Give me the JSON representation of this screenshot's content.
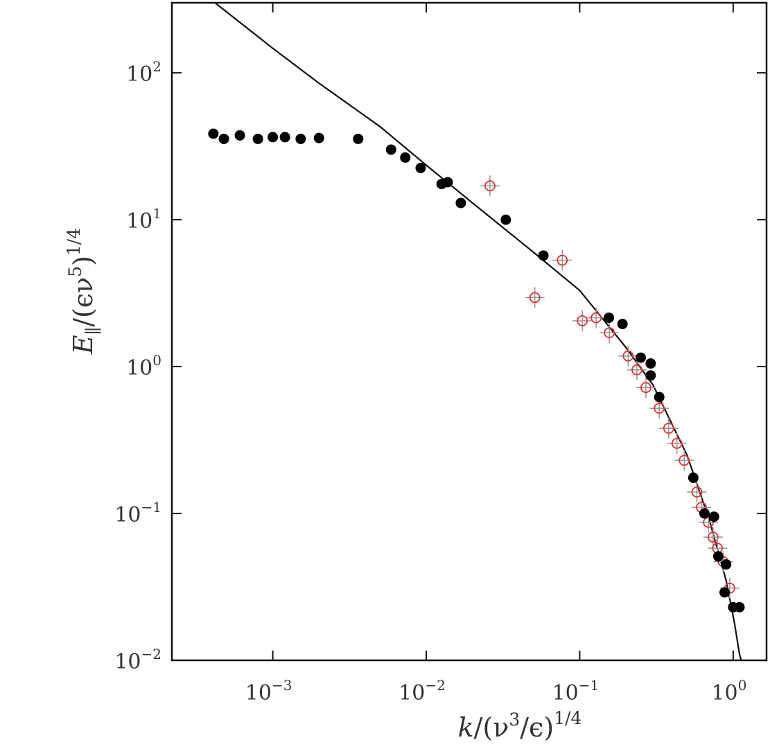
{
  "chart_data": {
    "type": "scatter",
    "xlabel": "k/(ν³/ϵ)^(1/4)",
    "ylabel": "E∥/(ϵν⁵)^(1/4)",
    "x_scale": "log",
    "y_scale": "log",
    "xlim": [
      0.00022,
      1.65
    ],
    "ylim": [
      0.01,
      300
    ],
    "x_ticks": [
      {
        "value": 0.001,
        "base": "10",
        "exp": "−3"
      },
      {
        "value": 0.01,
        "base": "10",
        "exp": "−2"
      },
      {
        "value": 0.1,
        "base": "10",
        "exp": "−1"
      },
      {
        "value": 1,
        "base": "10",
        "exp": "0"
      }
    ],
    "y_ticks": [
      {
        "value": 0.01,
        "base": "10",
        "exp": "−2"
      },
      {
        "value": 0.1,
        "base": "10",
        "exp": "−1"
      },
      {
        "value": 1,
        "base": "10",
        "exp": "0"
      },
      {
        "value": 10,
        "base": "10",
        "exp": "1"
      },
      {
        "value": 100,
        "base": "10",
        "exp": "2"
      }
    ],
    "grid": false,
    "legend": "none",
    "colors": {
      "filled": "#000000",
      "open": "#e53030",
      "line": "#111111",
      "errorbar": "#999999"
    },
    "series": [
      {
        "marker": "filled-circle",
        "points": [
          [
            0.00041,
            38.5
          ],
          [
            0.00048,
            35.5
          ],
          [
            0.00061,
            37.5
          ],
          [
            0.0008,
            35.5
          ],
          [
            0.001,
            36.5
          ],
          [
            0.0012,
            36.5
          ],
          [
            0.00152,
            35.5
          ],
          [
            0.002,
            36.0
          ],
          [
            0.0036,
            35.5
          ],
          [
            0.0059,
            30.0
          ],
          [
            0.0073,
            26.5
          ],
          [
            0.0092,
            22.5
          ],
          [
            0.0126,
            17.5
          ],
          [
            0.0138,
            18.0
          ],
          [
            0.0168,
            13.0
          ],
          [
            0.033,
            10.0
          ],
          [
            0.058,
            5.7
          ],
          [
            0.155,
            2.15
          ],
          [
            0.19,
            1.95
          ],
          [
            0.25,
            1.15
          ],
          [
            0.29,
            1.05
          ],
          [
            0.29,
            0.87
          ],
          [
            0.33,
            0.62
          ],
          [
            0.55,
            0.175
          ],
          [
            0.65,
            0.1
          ],
          [
            0.75,
            0.095
          ],
          [
            0.8,
            0.051
          ],
          [
            0.9,
            0.045
          ],
          [
            0.88,
            0.029
          ],
          [
            1.0,
            0.023
          ],
          [
            1.1,
            0.023
          ]
        ]
      },
      {
        "marker": "open-circle-errorbar",
        "points": [
          [
            0.026,
            17.0
          ],
          [
            0.051,
            2.95
          ],
          [
            0.077,
            5.3
          ],
          [
            0.104,
            2.05
          ],
          [
            0.128,
            2.15
          ],
          [
            0.156,
            1.7
          ],
          [
            0.207,
            1.18
          ],
          [
            0.236,
            0.95
          ],
          [
            0.27,
            0.72
          ],
          [
            0.33,
            0.52
          ],
          [
            0.38,
            0.38
          ],
          [
            0.43,
            0.3
          ],
          [
            0.48,
            0.23
          ],
          [
            0.58,
            0.14
          ],
          [
            0.62,
            0.11
          ],
          [
            0.69,
            0.087
          ],
          [
            0.74,
            0.069
          ],
          [
            0.79,
            0.058
          ],
          [
            0.86,
            0.047
          ],
          [
            0.95,
            0.031
          ]
        ]
      },
      {
        "marker": "line",
        "points": [
          [
            0.00042,
            300
          ],
          [
            0.001,
            147
          ],
          [
            0.002,
            85
          ],
          [
            0.005,
            43
          ],
          [
            0.01,
            23.5
          ],
          [
            0.02,
            13.0
          ],
          [
            0.05,
            6.0
          ],
          [
            0.1,
            3.3
          ],
          [
            0.2,
            1.35
          ],
          [
            0.3,
            0.75
          ],
          [
            0.5,
            0.25
          ],
          [
            0.7,
            0.09
          ],
          [
            0.9,
            0.035
          ],
          [
            1.02,
            0.018
          ],
          [
            1.1,
            0.011
          ],
          [
            1.13,
            0.01
          ]
        ]
      }
    ]
  }
}
